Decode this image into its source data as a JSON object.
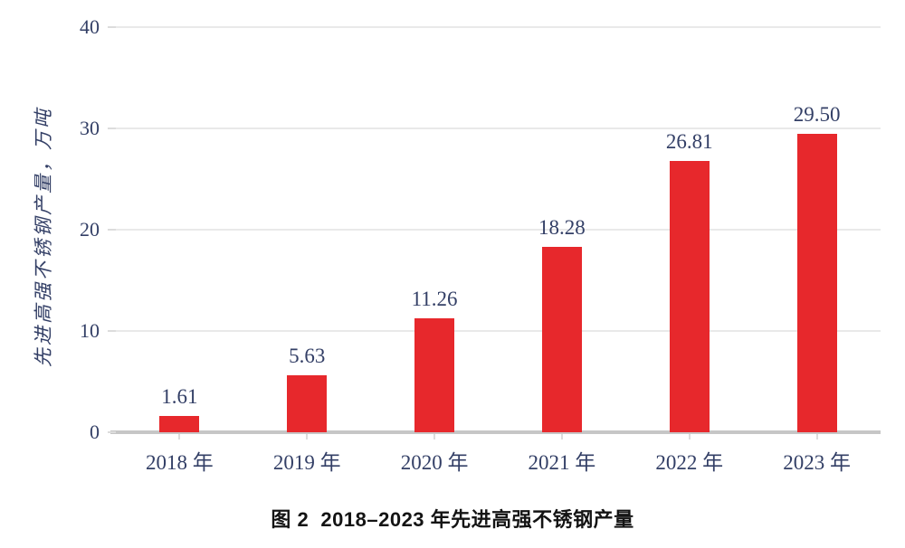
{
  "figure": {
    "caption": "图 2  2018–2023 年先进高强不锈钢产量"
  },
  "chart_data": {
    "type": "bar",
    "categories": [
      "2018 年",
      "2019 年",
      "2020 年",
      "2021 年",
      "2022 年",
      "2023 年"
    ],
    "values": [
      1.61,
      5.63,
      11.26,
      18.28,
      26.81,
      29.5
    ],
    "value_labels": [
      "1.61",
      "5.63",
      "11.26",
      "18.28",
      "26.81",
      "29.50"
    ],
    "title": "图 2  2018–2023 年先进高强不锈钢产量",
    "xlabel": "",
    "ylabel": "先进高强不锈钢产量，万吨",
    "ylim": [
      0,
      40
    ],
    "yticks": [
      0,
      10,
      20,
      30,
      40
    ],
    "grid": true,
    "legend": false
  },
  "colors": {
    "bar": "#e7282c",
    "grid": "#e9e9e9",
    "axis": "#c6c6c6",
    "tick": "#dcdcdc",
    "label_text": "#333f66",
    "caption_text": "#141414"
  }
}
